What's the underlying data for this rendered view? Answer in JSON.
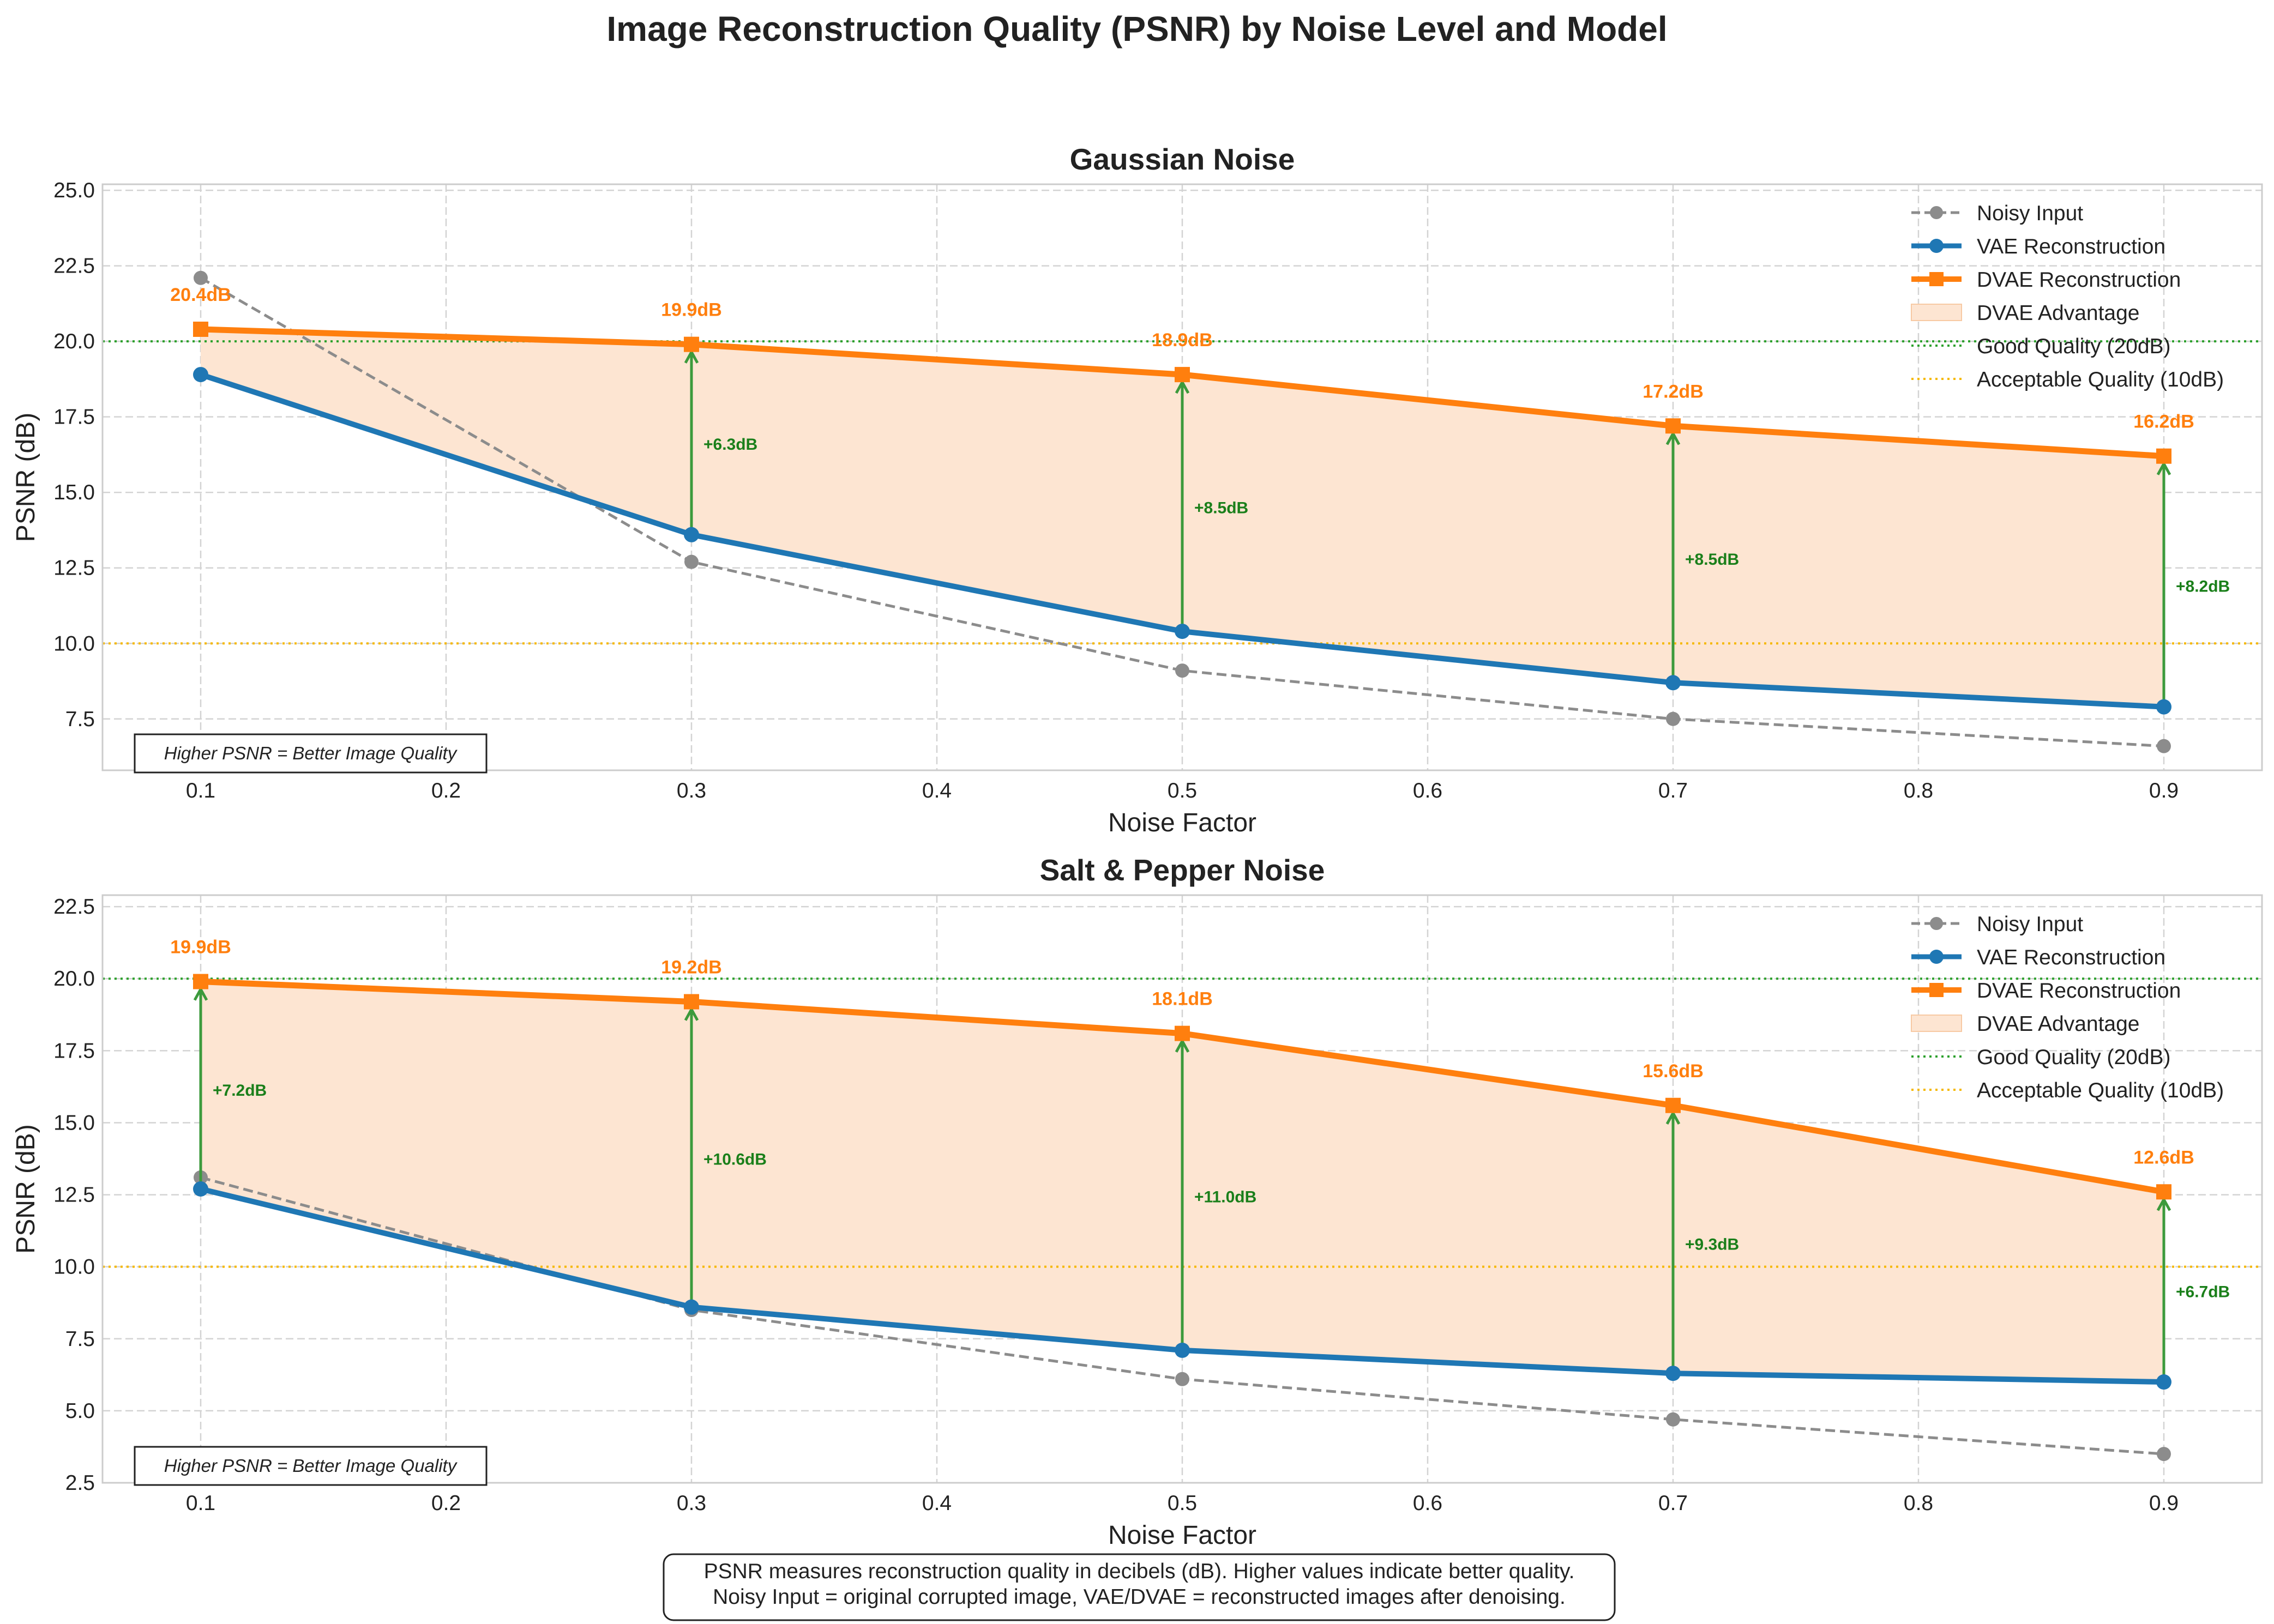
{
  "figure": {
    "title": "Image Reconstruction Quality (PSNR) by Noise Level and Model",
    "footnote": [
      "PSNR measures reconstruction quality in decibels (dB). Higher values indicate better quality.",
      "Noisy Input = original corrupted image, VAE/DVAE = reconstructed images after denoising."
    ]
  },
  "colors": {
    "noisy": "#8c8c8c",
    "vae": "#1f77b4",
    "dvae": "#ff7f0e",
    "advantage_fill": "#fde5d2",
    "good_line": "#2ca02c",
    "acceptable_line": "#f5b800",
    "gap_arrow": "#3c9a3c",
    "gap_text": "#1a7f1a",
    "value_label": "#ff7f0e"
  },
  "chart_data": [
    {
      "type": "line",
      "title": "Gaussian Noise",
      "xlabel": "Noise Factor",
      "ylabel": "PSNR (dB)",
      "x": [
        0.1,
        0.3,
        0.5,
        0.7,
        0.9
      ],
      "xticks": [
        "0.1",
        "0.2",
        "0.3",
        "0.4",
        "0.5",
        "0.6",
        "0.7",
        "0.8",
        "0.9"
      ],
      "yticks": [
        "7.5",
        "10.0",
        "12.5",
        "15.0",
        "17.5",
        "20.0",
        "22.5",
        "25.0"
      ],
      "xlim": [
        0.06,
        0.94
      ],
      "ylim": [
        5.8,
        25.2
      ],
      "series": [
        {
          "name": "Noisy Input",
          "values": [
            22.1,
            12.7,
            9.1,
            7.5,
            6.6
          ]
        },
        {
          "name": "VAE Reconstruction",
          "values": [
            18.9,
            13.6,
            10.4,
            8.7,
            7.9
          ]
        },
        {
          "name": "DVAE Reconstruction",
          "values": [
            20.4,
            19.9,
            18.9,
            17.2,
            16.2
          ]
        }
      ],
      "value_labels": [
        "20.4dB",
        "19.9dB",
        "18.9dB",
        "17.2dB",
        "16.2dB"
      ],
      "gap_labels": [
        "+6.3dB",
        "+8.5dB",
        "+8.5dB",
        "+8.2dB"
      ],
      "legend": [
        "Noisy Input",
        "VAE Reconstruction",
        "DVAE Reconstruction",
        "DVAE Advantage",
        "Good Quality (20dB)",
        "Acceptable Quality (10dB)"
      ],
      "legend_position": "top-right",
      "reference_lines": [
        20,
        10
      ],
      "note": "Higher PSNR = Better Image Quality",
      "grid": true
    },
    {
      "type": "line",
      "title": "Salt & Pepper Noise",
      "xlabel": "Noise Factor",
      "ylabel": "PSNR (dB)",
      "x": [
        0.1,
        0.3,
        0.5,
        0.7,
        0.9
      ],
      "xticks": [
        "0.1",
        "0.2",
        "0.3",
        "0.4",
        "0.5",
        "0.6",
        "0.7",
        "0.8",
        "0.9"
      ],
      "yticks": [
        "2.5",
        "5.0",
        "7.5",
        "10.0",
        "12.5",
        "15.0",
        "17.5",
        "20.0",
        "22.5"
      ],
      "xlim": [
        0.06,
        0.94
      ],
      "ylim": [
        2.5,
        22.9
      ],
      "series": [
        {
          "name": "Noisy Input",
          "values": [
            13.1,
            8.5,
            6.1,
            4.7,
            3.5
          ]
        },
        {
          "name": "VAE Reconstruction",
          "values": [
            12.7,
            8.6,
            7.1,
            6.3,
            6.0
          ]
        },
        {
          "name": "DVAE Reconstruction",
          "values": [
            19.9,
            19.2,
            18.1,
            15.6,
            12.6
          ]
        }
      ],
      "value_labels": [
        "19.9dB",
        "19.2dB",
        "18.1dB",
        "15.6dB",
        "12.6dB"
      ],
      "gap_labels": [
        "+7.2dB",
        "+10.6dB",
        "+11.0dB",
        "+9.3dB",
        "+6.7dB"
      ],
      "legend": [
        "Noisy Input",
        "VAE Reconstruction",
        "DVAE Reconstruction",
        "DVAE Advantage",
        "Good Quality (20dB)",
        "Acceptable Quality (10dB)"
      ],
      "legend_position": "top-right",
      "reference_lines": [
        20,
        10
      ],
      "note": "Higher PSNR = Better Image Quality",
      "grid": true
    }
  ]
}
